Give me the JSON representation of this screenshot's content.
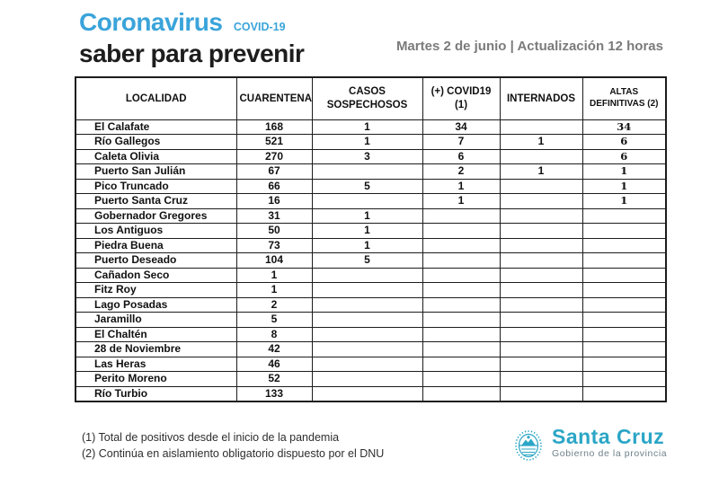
{
  "header": {
    "title": "Coronavirus",
    "covid_label": "COVID-19",
    "subtitle": "saber para prevenir",
    "date_info": "Martes 2 de junio | Actualización 12 horas"
  },
  "table": {
    "columns": [
      "LOCALIDAD",
      "CUARENTENA",
      "CASOS SOSPECHOSOS",
      "(+) COVID19 (1)",
      "INTERNADOS",
      "ALTAS DEFINITIVAS (2)"
    ],
    "rows": [
      [
        "El Calafate",
        "168",
        "1",
        "34",
        "",
        "34"
      ],
      [
        "Río Gallegos",
        "521",
        "1",
        "7",
        "1",
        "6"
      ],
      [
        "Caleta Olivia",
        "270",
        "3",
        "6",
        "",
        "6"
      ],
      [
        "Puerto San Julián",
        "67",
        "",
        "2",
        "1",
        "1"
      ],
      [
        "Pico Truncado",
        "66",
        "5",
        "1",
        "",
        "1"
      ],
      [
        "Puerto Santa Cruz",
        "16",
        "",
        "1",
        "",
        "1"
      ],
      [
        "Gobernador Gregores",
        "31",
        "1",
        "",
        "",
        ""
      ],
      [
        "Los Antiguos",
        "50",
        "1",
        "",
        "",
        ""
      ],
      [
        "Piedra Buena",
        "73",
        "1",
        "",
        "",
        ""
      ],
      [
        "Puerto Deseado",
        "104",
        "5",
        "",
        "",
        ""
      ],
      [
        "Cañadon Seco",
        "1",
        "",
        "",
        "",
        ""
      ],
      [
        "Fitz Roy",
        "1",
        "",
        "",
        "",
        ""
      ],
      [
        "Lago Posadas",
        "2",
        "",
        "",
        "",
        ""
      ],
      [
        "Jaramillo",
        "5",
        "",
        "",
        "",
        ""
      ],
      [
        "El Chaltén",
        "8",
        "",
        "",
        "",
        ""
      ],
      [
        "28 de Noviembre",
        "42",
        "",
        "",
        "",
        ""
      ],
      [
        "Las Heras",
        "46",
        "",
        "",
        "",
        ""
      ],
      [
        "Perito Moreno",
        "52",
        "",
        "",
        "",
        ""
      ],
      [
        "Río Turbio",
        "133",
        "",
        "",
        "",
        ""
      ]
    ]
  },
  "notes": {
    "note1": "(1) Total de positivos desde el inicio de la pandemia",
    "note2": "(2) Continúa en aislamiento obligatorio dispuesto por el DNU"
  },
  "logo": {
    "crest_icon": "santa-cruz-crest-icon",
    "name": "Santa Cruz",
    "subtitle": "Gobierno de la provincia"
  },
  "colors": {
    "title_blue": "#3aa4da",
    "subtitle_dark": "#1d1d1d",
    "date_gray": "#7b7b7b",
    "table_border": "#1c1c1c",
    "logo_teal": "#2ba6c6"
  }
}
